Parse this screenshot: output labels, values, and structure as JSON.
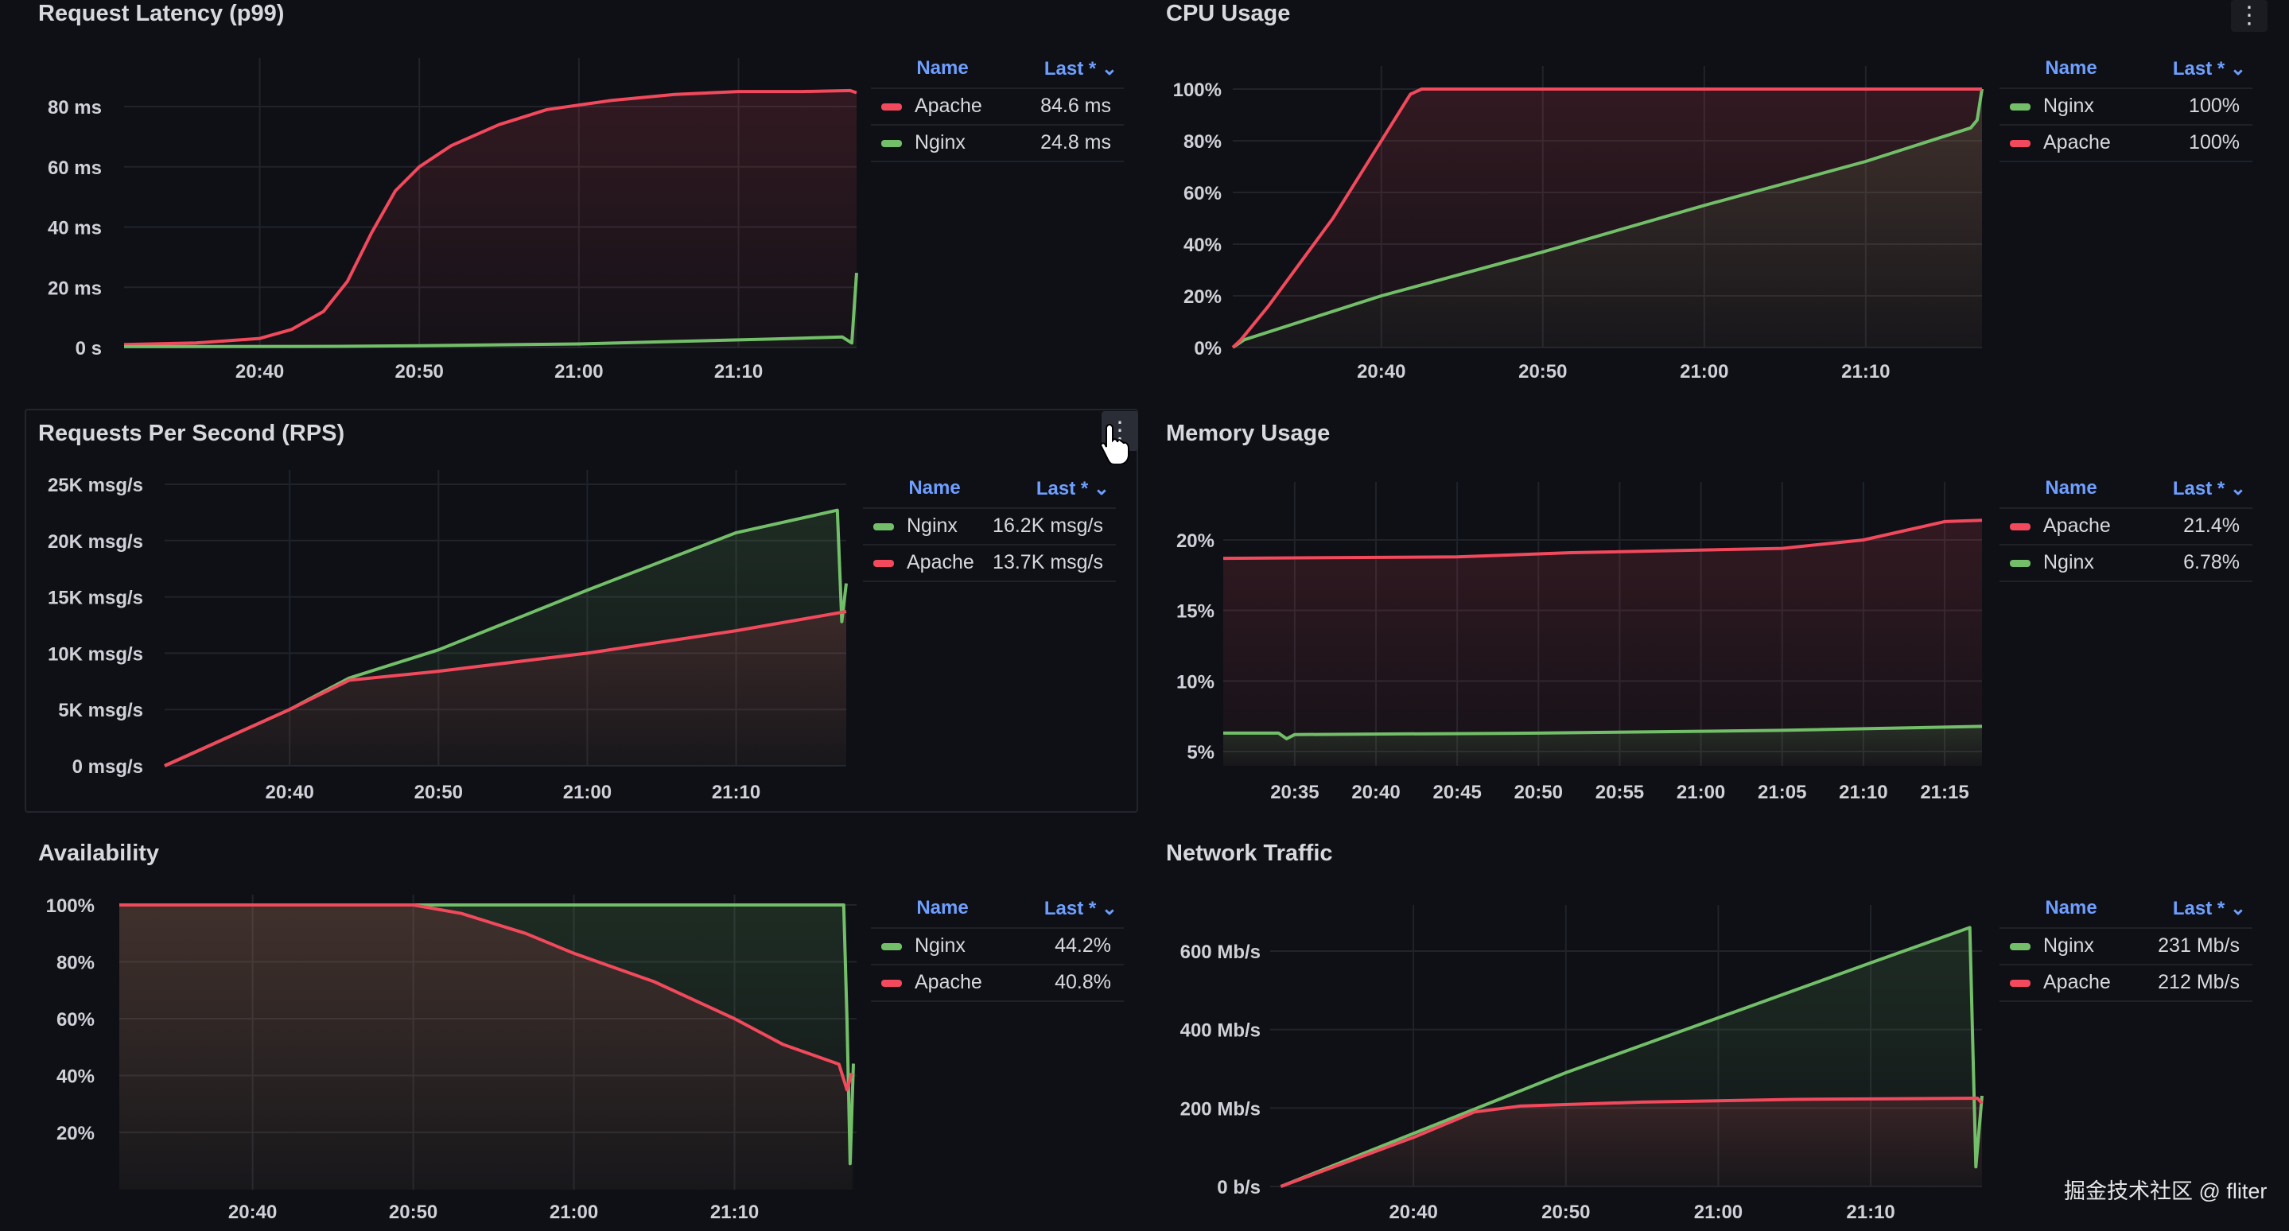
{
  "panels": {
    "latency_title": "Request Latency (p99)",
    "cpu_title": "CPU Usage",
    "rps_title": "Requests Per Second (RPS)",
    "memory_title": "Memory Usage",
    "availability_title": "Availability",
    "network_title": "Network Traffic"
  },
  "menu_icon": "⋮",
  "watermark": "掘金技术社区 @ fliter",
  "colors": {
    "red": "#f2495c",
    "green": "#73bf69",
    "legend_header": "#6e9fff",
    "background": "#0e1016",
    "grid": "#20232a"
  },
  "chart_data": [
    {
      "type": "line",
      "title": "Request Latency (p99)",
      "x_origin": "20:00",
      "xlim": [
        31.5,
        77.4
      ],
      "x_ticks": [
        "20:40",
        "20:50",
        "21:00",
        "21:10"
      ],
      "y_ticks": [
        {
          "v": 0,
          "label": "0 s"
        },
        {
          "v": 20,
          "label": "20 ms"
        },
        {
          "v": 40,
          "label": "40 ms"
        },
        {
          "v": 60,
          "label": "60 ms"
        },
        {
          "v": 80,
          "label": "80 ms"
        }
      ],
      "legend": {
        "name_header": "Name",
        "last_header": "Last * ⌄",
        "placement": "right"
      },
      "series": [
        {
          "name": "Apache",
          "color": "#f2495c",
          "last": "84.6 ms",
          "points": [
            [
              31.5,
              1
            ],
            [
              36,
              1.5
            ],
            [
              40,
              3
            ],
            [
              42,
              6
            ],
            [
              44,
              12
            ],
            [
              45.5,
              22
            ],
            [
              47,
              38
            ],
            [
              48.5,
              52
            ],
            [
              50,
              60
            ],
            [
              52,
              67
            ],
            [
              55,
              74
            ],
            [
              58,
              79
            ],
            [
              62,
              82
            ],
            [
              66,
              84
            ],
            [
              70,
              85
            ],
            [
              74,
              85
            ],
            [
              77,
              85.3
            ],
            [
              77.4,
              84.6
            ]
          ]
        },
        {
          "name": "Nginx",
          "color": "#73bf69",
          "last": "24.8 ms",
          "points": [
            [
              31.5,
              0.3
            ],
            [
              45,
              0.4
            ],
            [
              50,
              0.6
            ],
            [
              60,
              1.2
            ],
            [
              66,
              2
            ],
            [
              72,
              2.8
            ],
            [
              76.5,
              3.5
            ],
            [
              77.1,
              1.5
            ],
            [
              77.4,
              24.8
            ]
          ]
        }
      ]
    },
    {
      "type": "line",
      "title": "CPU Usage",
      "x_origin": "20:00",
      "xlim": [
        30.8,
        77.2
      ],
      "x_ticks": [
        "20:40",
        "20:50",
        "21:00",
        "21:10"
      ],
      "y_ticks": [
        {
          "v": 0,
          "label": "0%"
        },
        {
          "v": 20,
          "label": "20%"
        },
        {
          "v": 40,
          "label": "40%"
        },
        {
          "v": 60,
          "label": "60%"
        },
        {
          "v": 80,
          "label": "80%"
        },
        {
          "v": 100,
          "label": "100%"
        }
      ],
      "legend": {
        "name_header": "Name",
        "last_header": "Last * ⌄",
        "placement": "right"
      },
      "series": [
        {
          "name": "Nginx",
          "color": "#73bf69",
          "last": "100%",
          "points": [
            [
              30.8,
              0
            ],
            [
              31.5,
              3
            ],
            [
              40,
              20
            ],
            [
              50,
              37
            ],
            [
              60,
              55
            ],
            [
              70,
              72
            ],
            [
              76.5,
              85
            ],
            [
              76.9,
              88
            ],
            [
              77.2,
              100
            ]
          ]
        },
        {
          "name": "Apache",
          "color": "#f2495c",
          "last": "100%",
          "points": [
            [
              30.8,
              0
            ],
            [
              31.3,
              3
            ],
            [
              33,
              16
            ],
            [
              37,
              50
            ],
            [
              40,
              80
            ],
            [
              41.8,
              98
            ],
            [
              42.5,
              100
            ],
            [
              77.2,
              100
            ]
          ]
        }
      ]
    },
    {
      "type": "line",
      "title": "Requests Per Second (RPS)",
      "x_origin": "20:00",
      "xlim": [
        31.6,
        77.4
      ],
      "x_ticks": [
        "20:40",
        "20:50",
        "21:00",
        "21:10"
      ],
      "y_ticks": [
        {
          "v": 0,
          "label": "0 msg/s"
        },
        {
          "v": 5,
          "label": "5K msg/s"
        },
        {
          "v": 10,
          "label": "10K msg/s"
        },
        {
          "v": 15,
          "label": "15K msg/s"
        },
        {
          "v": 20,
          "label": "20K msg/s"
        },
        {
          "v": 25,
          "label": "25K msg/s"
        }
      ],
      "legend": {
        "name_header": "Name",
        "last_header": "Last * ⌄",
        "placement": "right"
      },
      "series": [
        {
          "name": "Nginx",
          "color": "#73bf69",
          "last": "16.2K msg/s",
          "points": [
            [
              31.6,
              0
            ],
            [
              40,
              5
            ],
            [
              44,
              7.8
            ],
            [
              50,
              10.3
            ],
            [
              60,
              15.6
            ],
            [
              70,
              20.7
            ],
            [
              76.8,
              22.7
            ],
            [
              77.1,
              12.8
            ],
            [
              77.4,
              16.2
            ]
          ]
        },
        {
          "name": "Apache",
          "color": "#f2495c",
          "last": "13.7K msg/s",
          "points": [
            [
              31.6,
              0
            ],
            [
              40,
              5
            ],
            [
              44,
              7.6
            ],
            [
              50,
              8.4
            ],
            [
              60,
              10
            ],
            [
              70,
              12
            ],
            [
              77.4,
              13.7
            ]
          ]
        }
      ]
    },
    {
      "type": "line",
      "title": "Memory Usage",
      "x_origin": "20:00",
      "xlim": [
        30.6,
        77.3
      ],
      "x_ticks": [
        "20:35",
        "20:40",
        "20:45",
        "20:50",
        "20:55",
        "21:00",
        "21:05",
        "21:10",
        "21:15"
      ],
      "y_ticks": [
        {
          "v": 5,
          "label": "5%"
        },
        {
          "v": 10,
          "label": "10%"
        },
        {
          "v": 15,
          "label": "15%"
        },
        {
          "v": 20,
          "label": "20%"
        }
      ],
      "legend": {
        "name_header": "Name",
        "last_header": "Last * ⌄",
        "placement": "right"
      },
      "series": [
        {
          "name": "Apache",
          "color": "#f2495c",
          "last": "21.4%",
          "points": [
            [
              30.6,
              18.7
            ],
            [
              45,
              18.8
            ],
            [
              52,
              19.1
            ],
            [
              65,
              19.4
            ],
            [
              70,
              20
            ],
            [
              75,
              21.3
            ],
            [
              77.3,
              21.4
            ]
          ]
        },
        {
          "name": "Nginx",
          "color": "#73bf69",
          "last": "6.78%",
          "points": [
            [
              30.6,
              6.3
            ],
            [
              34,
              6.3
            ],
            [
              34.5,
              5.9
            ],
            [
              35,
              6.2
            ],
            [
              50,
              6.3
            ],
            [
              65,
              6.5
            ],
            [
              77.3,
              6.78
            ]
          ]
        }
      ]
    },
    {
      "type": "line",
      "title": "Availability",
      "x_origin": "20:00",
      "xlim": [
        31.7,
        77.6
      ],
      "x_ticks": [
        "20:40",
        "20:50",
        "21:00",
        "21:10"
      ],
      "y_ticks": [
        {
          "v": 20,
          "label": "20%"
        },
        {
          "v": 40,
          "label": "40%"
        },
        {
          "v": 60,
          "label": "60%"
        },
        {
          "v": 80,
          "label": "80%"
        },
        {
          "v": 100,
          "label": "100%"
        }
      ],
      "legend": {
        "name_header": "Name",
        "last_header": "Last * ⌄",
        "placement": "right"
      },
      "series": [
        {
          "name": "Nginx",
          "color": "#73bf69",
          "last": "44.2%",
          "points": [
            [
              31.7,
              100
            ],
            [
              76.8,
              100
            ],
            [
              77.0,
              60
            ],
            [
              77.2,
              9
            ],
            [
              77.4,
              44.2
            ]
          ]
        },
        {
          "name": "Apache",
          "color": "#f2495c",
          "last": "40.8%",
          "points": [
            [
              31.7,
              100
            ],
            [
              50,
              100
            ],
            [
              53,
              97
            ],
            [
              57,
              90
            ],
            [
              60,
              83
            ],
            [
              65,
              73
            ],
            [
              70,
              60
            ],
            [
              73,
              51
            ],
            [
              76.5,
              44
            ],
            [
              77.0,
              35
            ],
            [
              77.3,
              40.8
            ]
          ]
        }
      ]
    },
    {
      "type": "line",
      "title": "Network Traffic",
      "x_origin": "20:00",
      "xlim": [
        30.6,
        77.3
      ],
      "x_ticks": [
        "20:40",
        "20:50",
        "21:00",
        "21:10"
      ],
      "y_ticks": [
        {
          "v": 0,
          "label": "0 b/s"
        },
        {
          "v": 200,
          "label": "200 Mb/s"
        },
        {
          "v": 400,
          "label": "400 Mb/s"
        },
        {
          "v": 600,
          "label": "600 Mb/s"
        }
      ],
      "legend": {
        "name_header": "Name",
        "last_header": "Last * ⌄",
        "placement": "right"
      },
      "series": [
        {
          "name": "Nginx",
          "color": "#73bf69",
          "last": "231 Mb/s",
          "points": [
            [
              31.3,
              0
            ],
            [
              40,
              135
            ],
            [
              50,
              290
            ],
            [
              60,
              430
            ],
            [
              70,
              570
            ],
            [
              76.5,
              660
            ],
            [
              76.9,
              50
            ],
            [
              77.3,
              231
            ]
          ]
        },
        {
          "name": "Apache",
          "color": "#f2495c",
          "last": "212 Mb/s",
          "points": [
            [
              31.3,
              0
            ],
            [
              40,
              125
            ],
            [
              44,
              190
            ],
            [
              47,
              205
            ],
            [
              55,
              215
            ],
            [
              65,
              222
            ],
            [
              77,
              225
            ],
            [
              77.3,
              212
            ]
          ]
        }
      ]
    }
  ]
}
